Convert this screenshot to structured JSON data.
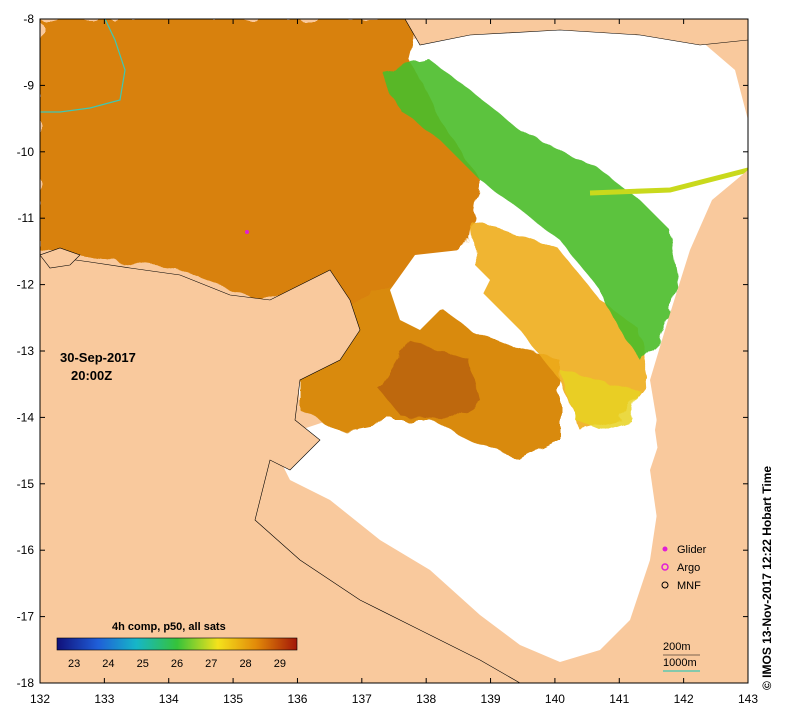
{
  "map": {
    "lon_ticks": [
      "132",
      "133",
      "134",
      "135",
      "136",
      "137",
      "138",
      "139",
      "140",
      "141",
      "142",
      "143"
    ],
    "lat_ticks": [
      "-8",
      "-9",
      "-10",
      "-11",
      "-12",
      "-13",
      "-14",
      "-15",
      "-16",
      "-17",
      "-18"
    ],
    "date": "30-Sep-2017",
    "time": "20:00Z",
    "colorbar_title": "4h comp, p50, all sats",
    "colorbar_ticks": [
      "23",
      "24",
      "25",
      "26",
      "27",
      "28",
      "29"
    ],
    "legend": {
      "glider": "Glider",
      "argo": "Argo",
      "mnf": "MNF"
    },
    "contours": {
      "c200": "200m",
      "c1000": "1000m"
    },
    "credit": "© IMOS 13-Nov-2017 12:22 Hobart Time",
    "colors": {
      "land": "#f9c99d",
      "no_data": "#ffffff",
      "warm": "#d77f05",
      "hot": "#b75a0a",
      "mild": "#f2b21d",
      "cool": "#45c423",
      "cold": "#1f77d8",
      "glider": "#e01ed6",
      "contour": "#3ec8b4"
    }
  }
}
